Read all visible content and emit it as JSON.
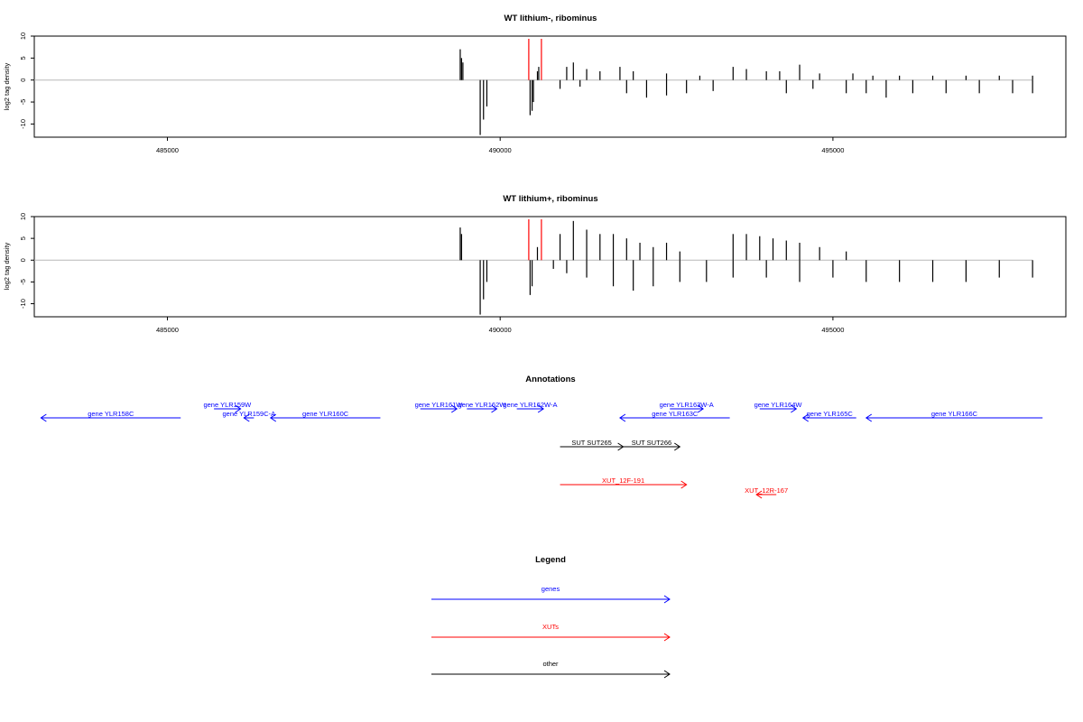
{
  "chart_data": [
    {
      "type": "bar",
      "title": "WT lithium-, ribominus",
      "ylabel": "log2 tag density",
      "xlabel": "",
      "xlim": [
        483000,
        498500
      ],
      "ylim": [
        -13,
        10
      ],
      "x_ticks": [
        "485000",
        "490000",
        "495000"
      ],
      "y_ticks": [
        "10",
        "5",
        "0",
        "-5",
        "-10"
      ],
      "markers": [
        490430,
        490620
      ],
      "series": [
        {
          "strand": "plus",
          "color": "#000000",
          "x": [
            489400,
            489420,
            489440,
            490560,
            490580,
            491000,
            491100,
            491300,
            491500,
            491800,
            492000,
            492500,
            493000,
            493500,
            493700,
            494000,
            494200,
            494500,
            494800,
            495300,
            495600,
            496000,
            496500,
            497000,
            497500,
            498000
          ],
          "values": [
            7,
            5,
            4,
            2,
            3,
            3,
            4,
            2.5,
            2,
            3,
            2,
            1.5,
            1,
            3,
            2.5,
            2,
            2,
            3.5,
            1.5,
            1.5,
            1,
            1,
            1,
            1,
            1,
            1
          ]
        },
        {
          "strand": "minus",
          "color": "#000000",
          "x": [
            489700,
            489750,
            489800,
            490450,
            490480,
            490500,
            490900,
            491200,
            491900,
            492200,
            492500,
            492800,
            493200,
            494300,
            494700,
            495200,
            495500,
            495800,
            496200,
            496700,
            497200,
            497700,
            498000
          ],
          "values": [
            -12.5,
            -9,
            -6,
            -8,
            -7,
            -5,
            -2,
            -1.5,
            -3,
            -4,
            -3.5,
            -3,
            -2.5,
            -3,
            -2,
            -3,
            -3,
            -4,
            -3,
            -3,
            -3,
            -3,
            -3
          ]
        }
      ]
    },
    {
      "type": "bar",
      "title": "WT lithium+, ribominus",
      "ylabel": "log2 tag density",
      "xlabel": "",
      "xlim": [
        483000,
        498500
      ],
      "ylim": [
        -13,
        10
      ],
      "x_ticks": [
        "485000",
        "490000",
        "495000"
      ],
      "y_ticks": [
        "10",
        "5",
        "0",
        "-5",
        "-10"
      ],
      "markers": [
        490430,
        490620
      ],
      "series": [
        {
          "strand": "plus",
          "color": "#000000",
          "x": [
            489400,
            489420,
            490560,
            490900,
            491100,
            491300,
            491500,
            491700,
            491900,
            492100,
            492300,
            492500,
            492700,
            493500,
            493700,
            493900,
            494100,
            494300,
            494500,
            494800,
            495200
          ],
          "values": [
            7.5,
            6,
            3,
            6,
            9,
            7,
            6,
            6,
            5,
            4,
            3,
            4,
            2,
            6,
            6,
            5.5,
            5,
            4.5,
            4,
            3,
            2
          ]
        },
        {
          "strand": "minus",
          "color": "#000000",
          "x": [
            489700,
            489750,
            489800,
            490450,
            490480,
            490800,
            491000,
            491300,
            491700,
            492000,
            492300,
            492700,
            493100,
            493500,
            494000,
            494500,
            495000,
            495500,
            496000,
            496500,
            497000,
            497500,
            498000
          ],
          "values": [
            -12.5,
            -9,
            -5,
            -8,
            -6,
            -2,
            -3,
            -4,
            -6,
            -7,
            -6,
            -5,
            -5,
            -4,
            -4,
            -5,
            -4,
            -5,
            -5,
            -5,
            -5,
            -4,
            -4
          ]
        }
      ]
    }
  ],
  "annotations": {
    "title": "Annotations",
    "features": [
      {
        "label": "gene YLR158C",
        "start": 483100,
        "end": 485200,
        "strand": "-",
        "row": 1,
        "color": "#0000ff"
      },
      {
        "label": "gene YLR159W",
        "start": 485700,
        "end": 486100,
        "strand": "+",
        "row": 0,
        "color": "#0000ff"
      },
      {
        "label": "gene YLR159C-A",
        "start": 486150,
        "end": 486300,
        "strand": "-",
        "row": 1,
        "color": "#0000ff"
      },
      {
        "label": "gene YLR160C",
        "start": 486550,
        "end": 488200,
        "strand": "-",
        "row": 1,
        "color": "#0000ff"
      },
      {
        "label": "gene YLR161W",
        "start": 488800,
        "end": 489350,
        "strand": "+",
        "row": 0,
        "color": "#0000ff"
      },
      {
        "label": "gene YLR162W",
        "start": 489500,
        "end": 489950,
        "strand": "+",
        "row": 0,
        "color": "#0000ff"
      },
      {
        "label": "gene YLR162W-A",
        "start": 490250,
        "end": 490650,
        "strand": "+",
        "row": 0,
        "color": "#0000ff"
      },
      {
        "label": "gene YLR163W-A",
        "start": 492550,
        "end": 493050,
        "strand": "+",
        "row": 0,
        "color": "#0000ff"
      },
      {
        "label": "gene YLR163C",
        "start": 491800,
        "end": 493450,
        "strand": "-",
        "row": 1,
        "color": "#0000ff"
      },
      {
        "label": "gene YLR164W",
        "start": 493900,
        "end": 494450,
        "strand": "+",
        "row": 0,
        "color": "#0000ff"
      },
      {
        "label": "gene YLR165C",
        "start": 494550,
        "end": 495350,
        "strand": "-",
        "row": 1,
        "color": "#0000ff"
      },
      {
        "label": "gene YLR166C",
        "start": 495500,
        "end": 498150,
        "strand": "-",
        "row": 1,
        "color": "#0000ff"
      },
      {
        "label": "SUT SUT265",
        "start": 490900,
        "end": 491850,
        "strand": "+",
        "row": 2,
        "color": "#000000"
      },
      {
        "label": "SUT SUT266",
        "start": 491850,
        "end": 492700,
        "strand": "+",
        "row": 2,
        "color": "#000000"
      },
      {
        "label": "XUT_12F-191",
        "start": 490900,
        "end": 492800,
        "strand": "+",
        "row": 3,
        "color": "#ff0000"
      },
      {
        "label": "XUT_12R-167",
        "start": 493850,
        "end": 494150,
        "strand": "-",
        "row": 4,
        "color": "#ff0000"
      }
    ]
  },
  "legend": {
    "title": "Legend",
    "items": [
      {
        "label": "genes",
        "color": "#0000ff"
      },
      {
        "label": "XUTs",
        "color": "#ff0000"
      },
      {
        "label": "other",
        "color": "#000000"
      }
    ]
  }
}
